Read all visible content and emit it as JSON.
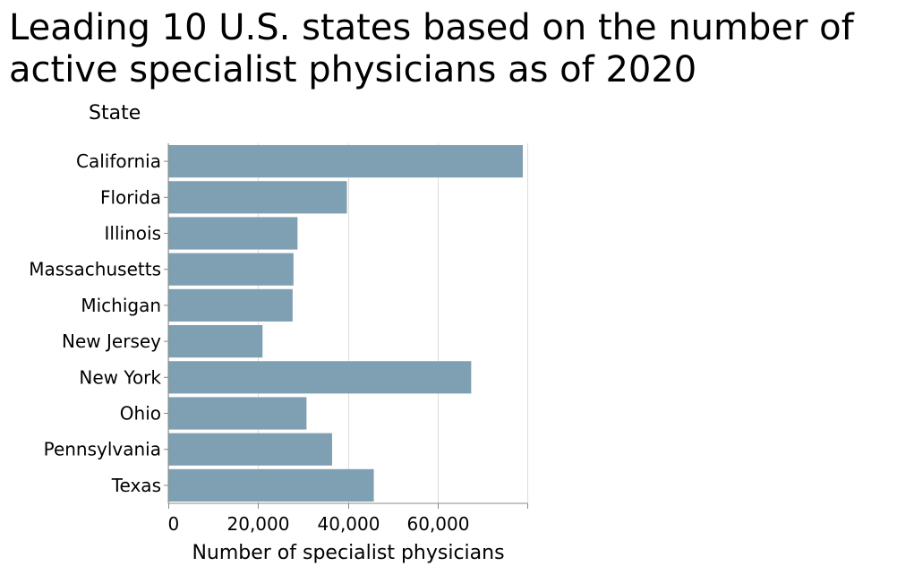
{
  "chart_data": {
    "type": "bar",
    "orientation": "horizontal",
    "title": "Leading 10 U.S. states based on the number of active specialist physicians as of 2020",
    "xlabel": "Number of specialist physicians",
    "ylabel": "State",
    "categories": [
      "California",
      "Florida",
      "Illinois",
      "Massachusetts",
      "Michigan",
      "New Jersey",
      "New York",
      "Ohio",
      "Pennsylvania",
      "Texas"
    ],
    "values": [
      79000,
      39800,
      28800,
      27900,
      27700,
      21000,
      67500,
      30800,
      36500,
      45800
    ],
    "xlim": [
      0,
      80000
    ],
    "xticks": [
      0,
      20000,
      40000,
      60000,
      80000
    ],
    "xtick_labels": [
      "0",
      "20,000",
      "40,000",
      "60,000",
      ""
    ],
    "grid": true,
    "bar_color": "#7f9fb2"
  }
}
